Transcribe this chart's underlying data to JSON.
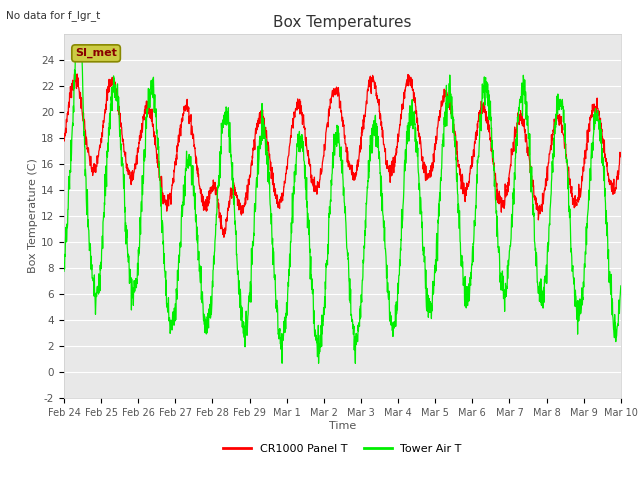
{
  "title": "Box Temperatures",
  "xlabel": "Time",
  "ylabel": "Box Temperature (C)",
  "top_left_text": "No data for f_lgr_t",
  "annotation_text": "SI_met",
  "ylim": [
    -2,
    26
  ],
  "yticks": [
    -2,
    0,
    2,
    4,
    6,
    8,
    10,
    12,
    14,
    16,
    18,
    20,
    22,
    24
  ],
  "xtick_labels": [
    "Feb 24",
    "Feb 25",
    "Feb 26",
    "Feb 27",
    "Feb 28",
    "Feb 29",
    "Mar 1",
    "Mar 2",
    "Mar 3",
    "Mar 4",
    "Mar 5",
    "Mar 6",
    "Mar 7",
    "Mar 8",
    "Mar 9",
    "Mar 10"
  ],
  "legend_labels": [
    "CR1000 Panel T",
    "Tower Air T"
  ],
  "line_color_red": "#ff0000",
  "line_color_green": "#00ee00",
  "fig_bg_color": "#ffffff",
  "plot_bg_color": "#e8e8e8",
  "grid_color": "#ffffff",
  "annotation_bg": "#cccc44",
  "annotation_border": "#888800",
  "title_color": "#333333",
  "label_color": "#555555",
  "n_points": 2000
}
